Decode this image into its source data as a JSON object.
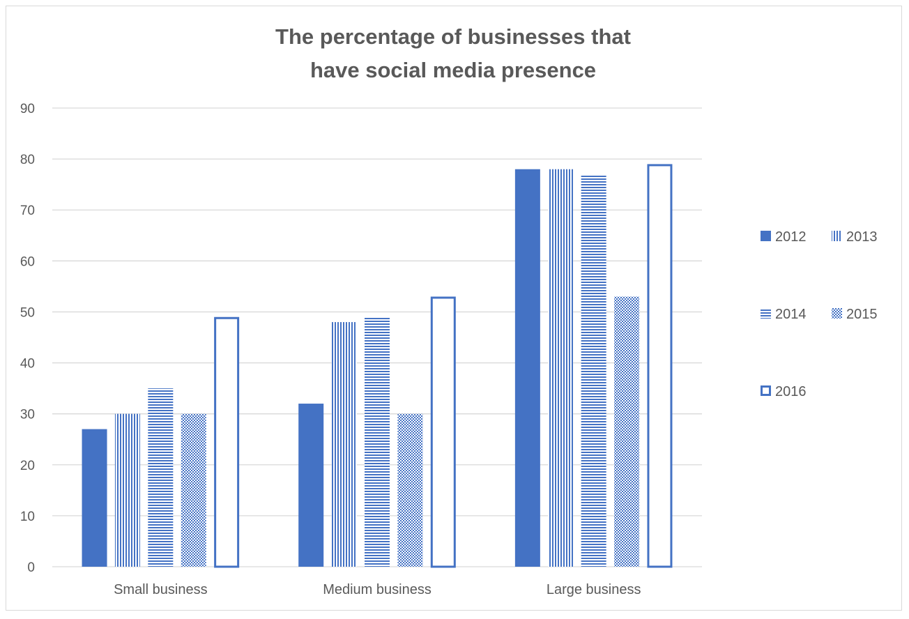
{
  "chart_data": {
    "type": "bar",
    "title_lines": [
      "The percentage of businesses that",
      "have social media presence"
    ],
    "xlabel": "",
    "ylabel": "",
    "categories": [
      "Small business",
      "Medium business",
      "Large business"
    ],
    "series": [
      {
        "name": "2012",
        "values": [
          27,
          32,
          78
        ]
      },
      {
        "name": "2013",
        "values": [
          30,
          48,
          78
        ]
      },
      {
        "name": "2014",
        "values": [
          35,
          49,
          77
        ]
      },
      {
        "name": "2015",
        "values": [
          30,
          30,
          53
        ]
      },
      {
        "name": "2016",
        "values": [
          49,
          53,
          79
        ]
      }
    ],
    "ylim": [
      0,
      90
    ],
    "yticks": [
      0,
      10,
      20,
      30,
      40,
      50,
      60,
      70,
      80,
      90
    ],
    "grid": true,
    "legend_position": "right",
    "colors": {
      "series": "#4472c4",
      "grid": "#d9d9d9",
      "text": "#595959",
      "border": "#d9d9d9"
    },
    "series_fills": [
      "solid",
      "vertical-stripes",
      "horizontal-stripes",
      "checker",
      "outline"
    ]
  }
}
